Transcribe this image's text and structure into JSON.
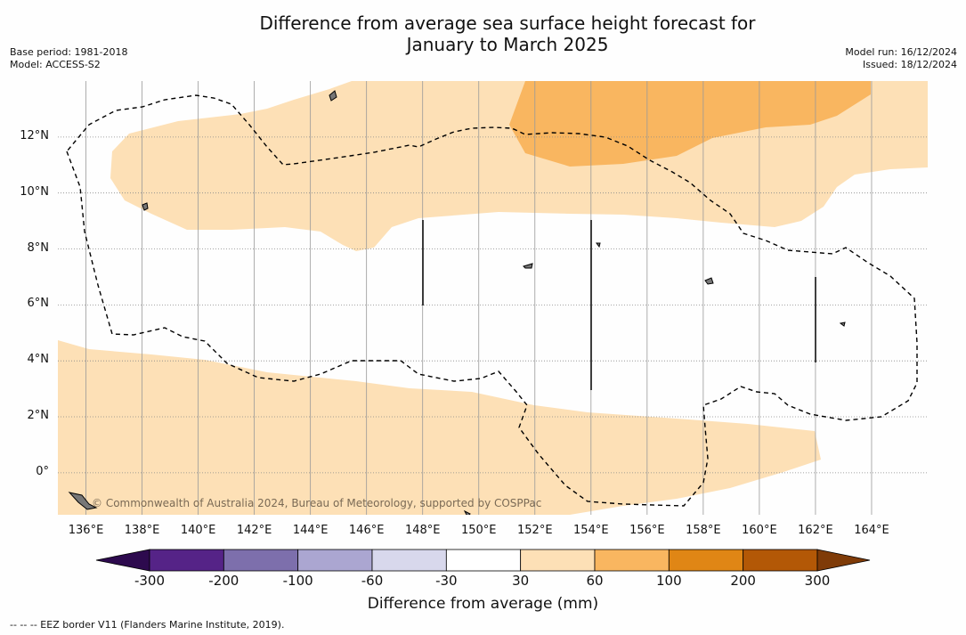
{
  "title": {
    "line1": "Difference from average sea surface height forecast for",
    "line2": "January to March 2025"
  },
  "meta": {
    "base_period": "Base period: 1981-2018",
    "model": "Model: ACCESS-S2",
    "model_run": "Model run: 16/12/2024",
    "issued": "Issued: 18/12/2024"
  },
  "map": {
    "lon_ticks": [
      "136°E",
      "138°E",
      "140°E",
      "142°E",
      "144°E",
      "146°E",
      "148°E",
      "150°E",
      "152°E",
      "154°E",
      "156°E",
      "158°E",
      "160°E",
      "162°E",
      "164°E"
    ],
    "lat_ticks": [
      "12°N",
      "10°N",
      "8°N",
      "6°N",
      "4°N",
      "2°N",
      "0°"
    ],
    "extent": {
      "lon_min": 135,
      "lon_max": 166,
      "lat_min": -1.5,
      "lat_max": 14
    },
    "credit": "© Commonwealth of Australia 2024, Bureau of Meteorology, supported by COSPPac",
    "fill_colors": {
      "30_to_60": "#fde0b6",
      "60_to_100": "#f9b660",
      "land": "#777777",
      "eez": "#000000"
    }
  },
  "colorbar": {
    "title": "Difference from average (mm)",
    "ticks": [
      "-300",
      "-200",
      "-100",
      "-60",
      "-30",
      "30",
      "60",
      "100",
      "200",
      "300"
    ],
    "colors": [
      "#2d0a4e",
      "#552387",
      "#7d6fac",
      "#aba6d1",
      "#d8d8ec",
      "#ffffff",
      "#fde0b6",
      "#f9b660",
      "#e08615",
      "#b35806",
      "#7f3b08"
    ]
  },
  "footnote": "--  --  -- EEZ border V11 (Flanders Marine Institute, 2019)."
}
